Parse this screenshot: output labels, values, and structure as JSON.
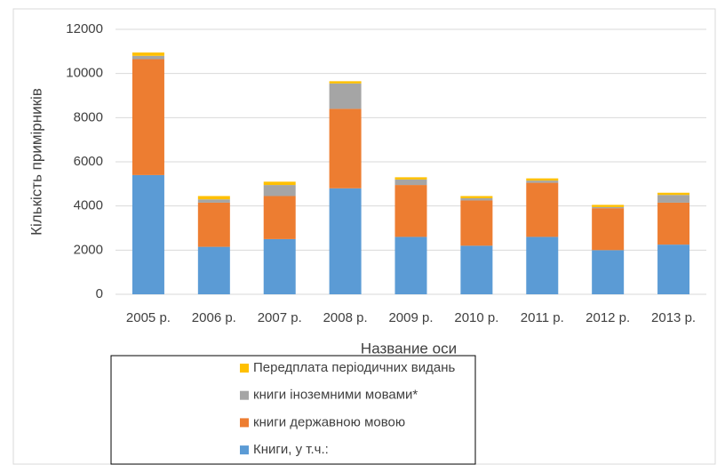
{
  "chart_data": {
    "type": "bar",
    "stacked": true,
    "x_label": "Название оси",
    "y_label": "Кількість примірників",
    "categories": [
      "2005 р.",
      "2006 р.",
      "2007 р.",
      "2008 р.",
      "2009 р.",
      "2010 р.",
      "2011 р.",
      "2012 р.",
      "2013 р."
    ],
    "series": [
      {
        "name": "Книги, у т.ч.:",
        "color": "#5b9bd5",
        "values": [
          5400,
          2150,
          2500,
          4800,
          2600,
          2200,
          2600,
          2000,
          2250
        ]
      },
      {
        "name": "книги державною мовою",
        "color": "#ed7d31",
        "values": [
          5250,
          2000,
          1950,
          3600,
          2350,
          2050,
          2450,
          1900,
          1900
        ]
      },
      {
        "name": "книги іноземними мовами*",
        "color": "#a5a5a5",
        "values": [
          150,
          150,
          500,
          1150,
          250,
          100,
          100,
          50,
          350
        ]
      },
      {
        "name": "Передплата періодичних видань",
        "color": "#ffc000",
        "values": [
          150,
          150,
          150,
          100,
          100,
          100,
          100,
          100,
          100
        ]
      }
    ],
    "ylim": [
      0,
      12000
    ],
    "yticks": [
      0,
      2000,
      4000,
      6000,
      8000,
      10000,
      12000
    ],
    "grid": true
  }
}
